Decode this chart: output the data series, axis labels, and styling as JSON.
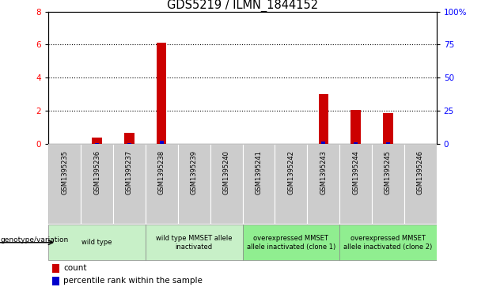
{
  "title": "GDS5219 / ILMN_1844152",
  "samples": [
    "GSM1395235",
    "GSM1395236",
    "GSM1395237",
    "GSM1395238",
    "GSM1395239",
    "GSM1395240",
    "GSM1395241",
    "GSM1395242",
    "GSM1395243",
    "GSM1395244",
    "GSM1395245",
    "GSM1395246"
  ],
  "count_values": [
    0,
    0.35,
    0.65,
    6.1,
    0,
    0,
    0,
    0,
    3.0,
    2.05,
    1.85,
    0
  ],
  "percentile_values": [
    0,
    0.18,
    0.28,
    2.2,
    0,
    0,
    0,
    0,
    1.25,
    0.85,
    0.72,
    0
  ],
  "ylim_left": [
    0,
    8
  ],
  "ylim_right": [
    0,
    100
  ],
  "yticks_left": [
    0,
    2,
    4,
    6,
    8
  ],
  "yticks_right": [
    0,
    25,
    50,
    75,
    100
  ],
  "ytick_labels_right": [
    "0",
    "25",
    "50",
    "75",
    "100%"
  ],
  "bar_color_count": "#cc0000",
  "bar_color_percentile": "#0000cc",
  "groups_def": [
    {
      "label": "wild type",
      "cols": [
        0,
        1,
        2
      ],
      "color": "#c8f0c8"
    },
    {
      "label": "wild type MMSET allele\ninactivated",
      "cols": [
        3,
        4,
        5
      ],
      "color": "#c8f0c8"
    },
    {
      "label": "overexpressed MMSET\nallele inactivated (clone 1)",
      "cols": [
        6,
        7,
        8
      ],
      "color": "#90ee90"
    },
    {
      "label": "overexpressed MMSET\nallele inactivated (clone 2)",
      "cols": [
        9,
        10,
        11
      ],
      "color": "#90ee90"
    }
  ],
  "legend_count_label": "count",
  "legend_percentile_label": "percentile rank within the sample",
  "genotype_label": "genotype/variation"
}
